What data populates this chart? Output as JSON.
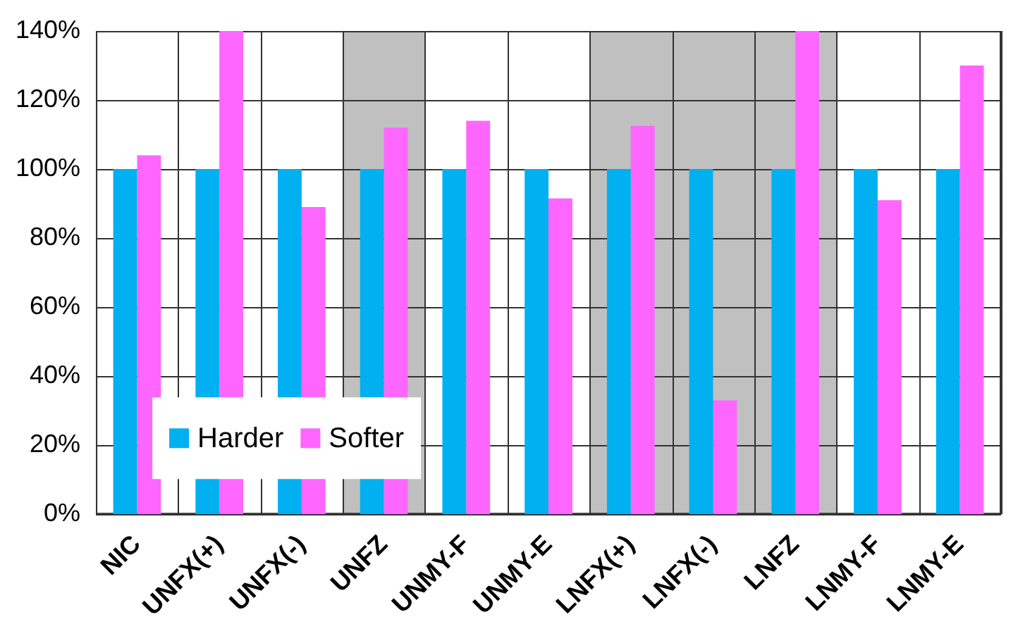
{
  "chart_data": {
    "type": "bar",
    "categories": [
      "NIC",
      "UNFX(+)",
      "UNFX(-)",
      "UNFZ",
      "UNMY-F",
      "UNMY-E",
      "LNFX(+)",
      "LNFX(-)",
      "LNFZ",
      "LNMY-F",
      "LNMY-E"
    ],
    "series": [
      {
        "name": "Harder",
        "color": "#00b0f0",
        "values": [
          100,
          100,
          100,
          100,
          100,
          100,
          100,
          100,
          100,
          100,
          100
        ]
      },
      {
        "name": "Softer",
        "color": "#ff66ff",
        "values": [
          104,
          140,
          89,
          112,
          114,
          91.5,
          112.5,
          33,
          140,
          91,
          130
        ]
      }
    ],
    "ylim": [
      0,
      140
    ],
    "yticks": [
      {
        "value": 0,
        "label": "0%"
      },
      {
        "value": 20,
        "label": "20%"
      },
      {
        "value": 40,
        "label": "40%"
      },
      {
        "value": 60,
        "label": "60%"
      },
      {
        "value": 80,
        "label": "80%"
      },
      {
        "value": 100,
        "label": "100%"
      },
      {
        "value": 120,
        "label": "120%"
      },
      {
        "value": 140,
        "label": "140%"
      }
    ],
    "bands": [
      {
        "axis": "x",
        "from": "UNFZ",
        "to": "UNFZ",
        "color": "#c0c0c0"
      },
      {
        "axis": "x",
        "from": "LNFX(+)",
        "to": "LNFZ",
        "color": "#c0c0c0"
      }
    ],
    "grid": true,
    "legend": "bottom left"
  }
}
